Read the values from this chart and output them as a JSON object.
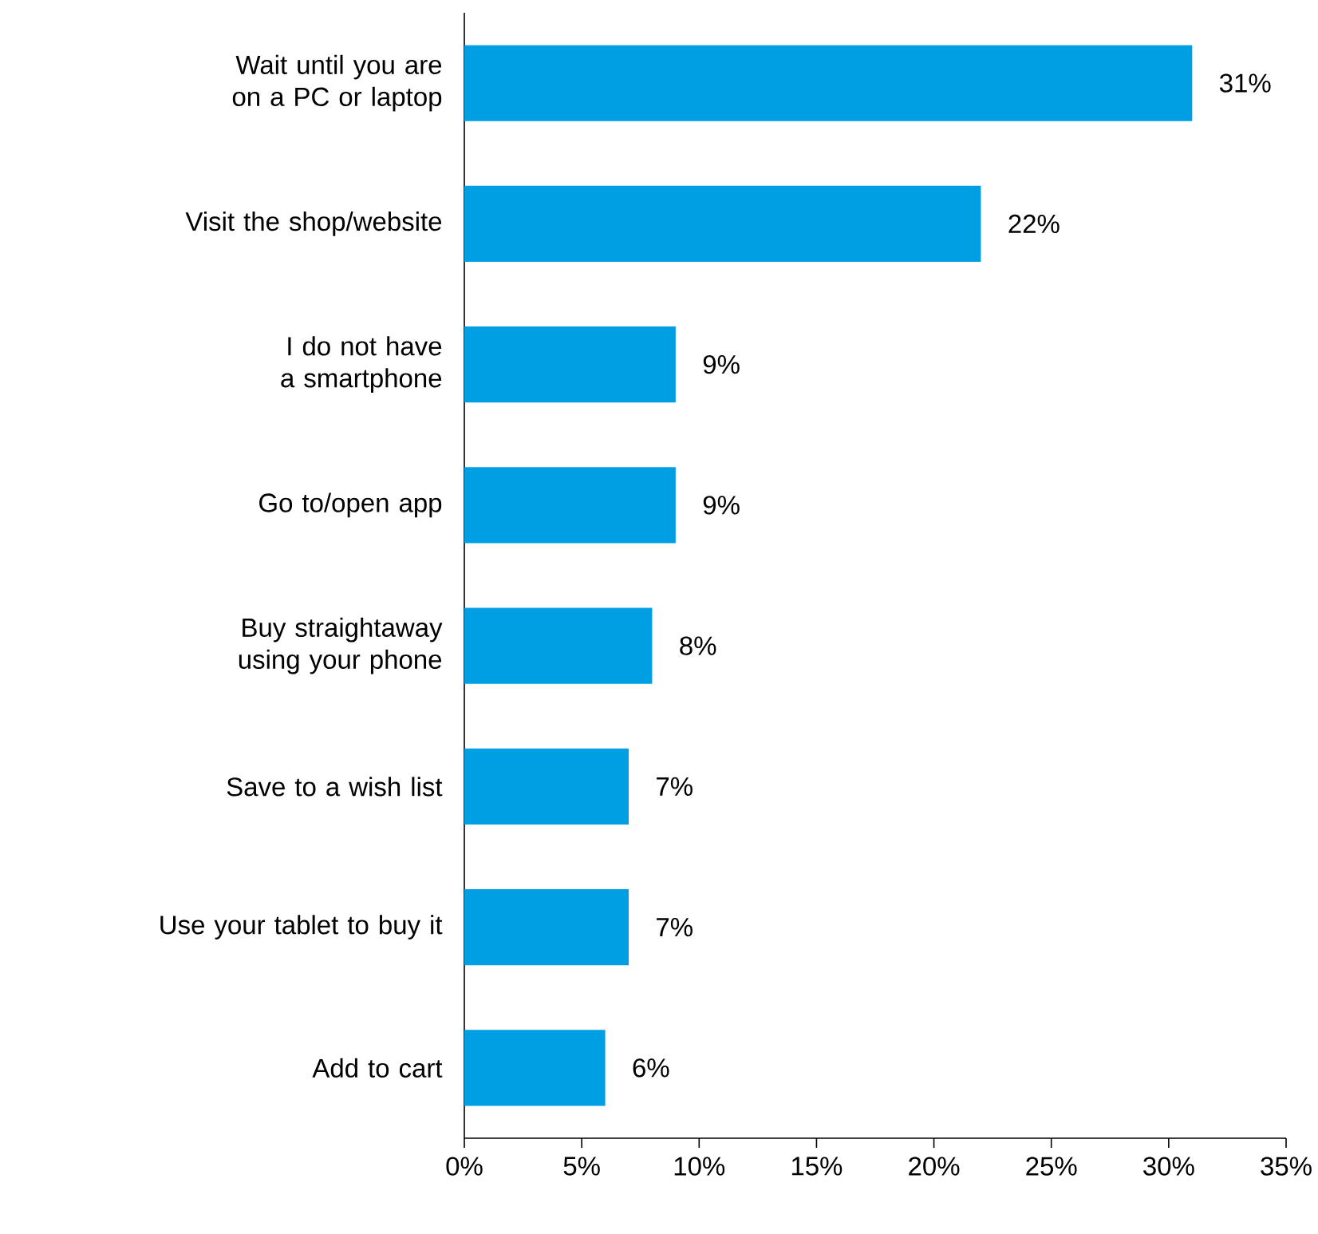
{
  "chart_data": {
    "type": "bar",
    "orientation": "horizontal",
    "color": "#009fe3",
    "categories": [
      "Wait until you are on a PC or laptop",
      "Visit the shop/website",
      "I do not have a smartphone",
      "Go to/open app",
      "Buy straightaway using your phone",
      "Save to a wish list",
      "Use your tablet to buy it",
      "Add to cart"
    ],
    "values": [
      31,
      22,
      9,
      9,
      8,
      7,
      7,
      6
    ],
    "value_labels": [
      "31%",
      "22%",
      "9%",
      "9%",
      "8%",
      "7%",
      "7%",
      "6%"
    ],
    "xlim": [
      0,
      35
    ],
    "xticks": [
      {
        "value": 0,
        "label": "0%"
      },
      {
        "value": 5,
        "label": "5%"
      },
      {
        "value": 10,
        "label": "10%"
      },
      {
        "value": 15,
        "label": "15%"
      },
      {
        "value": 20,
        "label": "20%"
      },
      {
        "value": 25,
        "label": "25%"
      },
      {
        "value": 30,
        "label": "30%"
      },
      {
        "value": 35,
        "label": "35%"
      }
    ]
  }
}
